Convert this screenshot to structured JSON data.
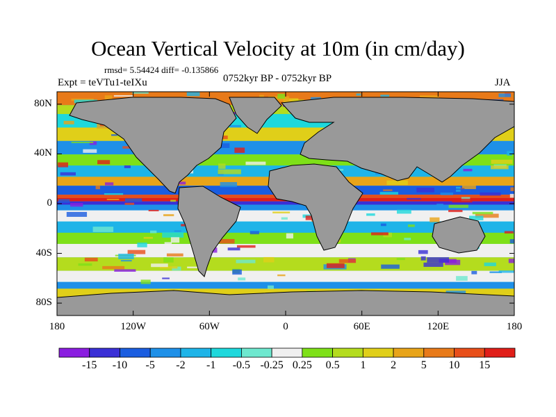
{
  "header": {
    "title": "Ocean Vertical Velocity at 10m (in cm/day)",
    "stats": "rmsd= 5.54424 diff= -0.135866",
    "experiment": "Expt = teVTu1-teIXu",
    "period": "0752kyr BP - 0752kyr BP",
    "season": "JJA"
  },
  "map": {
    "lat_labels": [
      "80N",
      "40N",
      "0",
      "40S",
      "80S"
    ],
    "lat_values": [
      80,
      40,
      0,
      -40,
      -80
    ],
    "lon_labels": [
      "180",
      "120W",
      "60W",
      "0",
      "60E",
      "120E",
      "180"
    ],
    "lon_values": [
      -180,
      -120,
      -60,
      0,
      60,
      120,
      180
    ],
    "land_color": "#999999"
  },
  "colorbar": {
    "levels": [
      "-15",
      "-10",
      "-5",
      "-2",
      "-1",
      "-0.5",
      "-0.25",
      "0.25",
      "0.5",
      "1",
      "2",
      "5",
      "10",
      "15"
    ],
    "colors": [
      "#8a1de0",
      "#3a2fd6",
      "#1a5de0",
      "#1e90e8",
      "#1eb4e8",
      "#1ed8dc",
      "#6ee8cf",
      "#f0f0f0",
      "#7ee018",
      "#b4dc1e",
      "#e0cf19",
      "#e8a419",
      "#e87a19",
      "#e84e19",
      "#e01e19"
    ]
  }
}
